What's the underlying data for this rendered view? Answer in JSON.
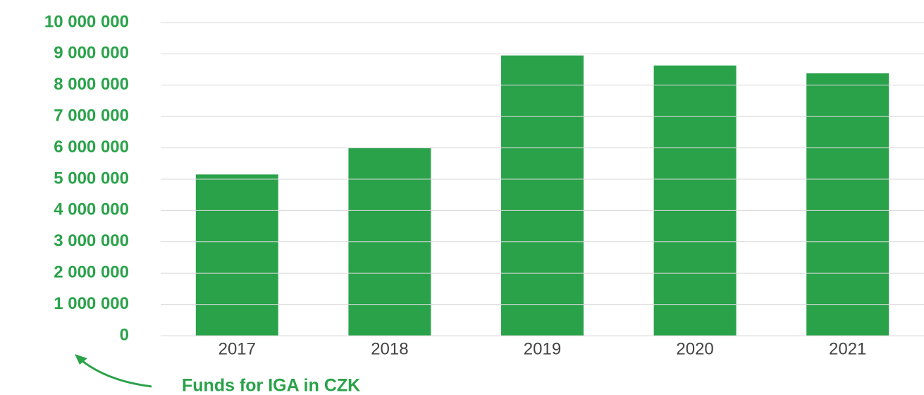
{
  "chart_data": {
    "type": "bar",
    "categories": [
      "2017",
      "2018",
      "2019",
      "2020",
      "2021"
    ],
    "values": [
      5150000,
      6000000,
      8950000,
      8630000,
      8380000
    ],
    "color": "#2aa24a",
    "ylim": [
      0,
      10000000
    ],
    "yticks": [
      0,
      {
        "value": 1000000,
        "label": "1 000 000"
      },
      {
        "value": 2000000,
        "label": "2 000 000"
      },
      {
        "value": 3000000,
        "label": "3 000 000"
      },
      {
        "value": 4000000,
        "label": "4 000 000"
      },
      {
        "value": 5000000,
        "label": "5 000 000"
      },
      {
        "value": 6000000,
        "label": "6 000 000"
      },
      {
        "value": 7000000,
        "label": "7 000 000"
      },
      {
        "value": 8000000,
        "label": "8 000 000"
      },
      {
        "value": 9000000,
        "label": "9 000 000"
      },
      {
        "value": 10000000,
        "label": "10 000 000"
      }
    ],
    "grid": true,
    "annotation": "Funds for IGA in CZK"
  }
}
